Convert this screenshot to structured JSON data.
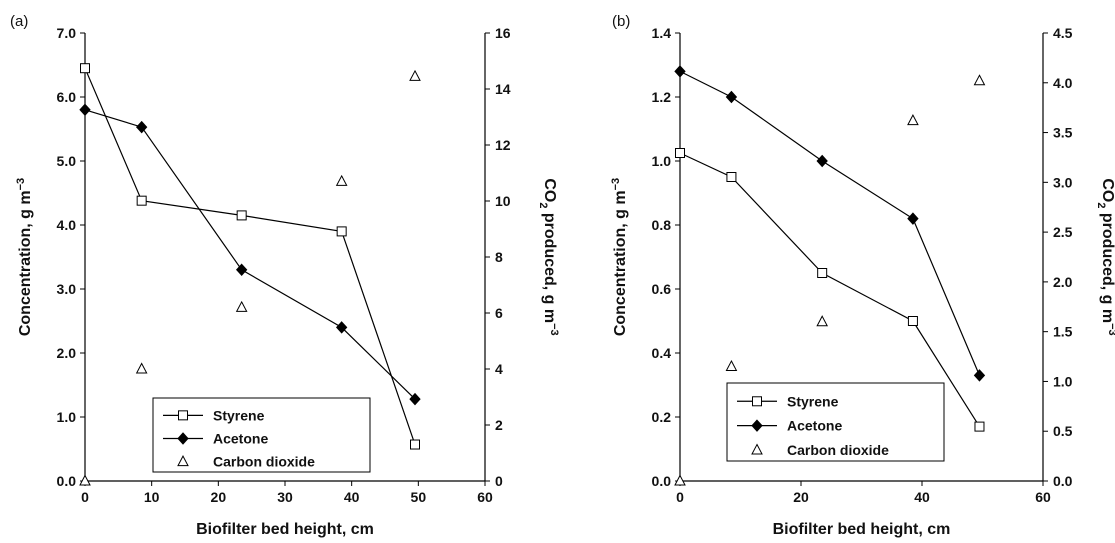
{
  "chart_data": [
    {
      "panel_label": "(a)",
      "type": "line",
      "xlabel": "Biofilter bed height, cm",
      "ylabel": "Concentration, g m",
      "ylabel_sup": "−3",
      "y2label_main": "CO",
      "y2label_sub": "2",
      "y2label_rest": " produced, g m",
      "y2label_sup": "−3",
      "xlim": [
        0,
        60
      ],
      "xticks": [
        "0",
        "10",
        "20",
        "30",
        "40",
        "50",
        "60"
      ],
      "ylim": [
        0,
        7
      ],
      "yticks": [
        "0.0",
        "1.0",
        "2.0",
        "3.0",
        "4.0",
        "5.0",
        "6.0",
        "7.0"
      ],
      "y2lim": [
        0,
        16
      ],
      "y2ticks": [
        "0",
        "2",
        "4",
        "6",
        "8",
        "10",
        "12",
        "14",
        "16"
      ],
      "series": [
        {
          "name": "Styrene",
          "marker": "open-square",
          "axis": "left",
          "x": [
            0,
            8.5,
            23.5,
            38.5,
            49.5
          ],
          "y": [
            6.45,
            4.38,
            4.15,
            3.9,
            0.57
          ]
        },
        {
          "name": "Acetone",
          "marker": "filled-diamond",
          "axis": "left",
          "x": [
            0,
            8.5,
            23.5,
            38.5,
            49.5
          ],
          "y": [
            5.8,
            5.53,
            3.3,
            2.4,
            1.28
          ]
        },
        {
          "name": "Carbon dioxide",
          "marker": "open-triangle",
          "axis": "right",
          "line": false,
          "x": [
            0,
            8.5,
            23.5,
            38.5,
            49.5
          ],
          "y": [
            0,
            4.0,
            6.2,
            10.7,
            14.45
          ]
        }
      ],
      "legend_position": "bottom-center"
    },
    {
      "panel_label": "(b)",
      "type": "line",
      "xlabel": "Biofilter bed height, cm",
      "ylabel": "Concentration, g m",
      "ylabel_sup": "−3",
      "y2label_main": "CO",
      "y2label_sub": "2",
      "y2label_rest": " produced, g m",
      "y2label_sup": "−3",
      "xlim": [
        0,
        60
      ],
      "xticks": [
        "0",
        "20",
        "40",
        "60"
      ],
      "ylim": [
        0,
        1.4
      ],
      "yticks": [
        "0.0",
        "0.2",
        "0.4",
        "0.6",
        "0.8",
        "1.0",
        "1.2",
        "1.4"
      ],
      "y2lim": [
        0,
        4.5
      ],
      "y2ticks": [
        "0.0",
        "0.5",
        "1.0",
        "1.5",
        "2.0",
        "2.5",
        "3.0",
        "3.5",
        "4.0",
        "4.5"
      ],
      "series": [
        {
          "name": "Styrene",
          "marker": "open-square",
          "axis": "left",
          "x": [
            0,
            8.5,
            23.5,
            38.5,
            49.5
          ],
          "y": [
            1.025,
            0.95,
            0.65,
            0.5,
            0.17
          ]
        },
        {
          "name": "Acetone",
          "marker": "filled-diamond",
          "axis": "left",
          "x": [
            0,
            8.5,
            23.5,
            38.5,
            49.5
          ],
          "y": [
            1.28,
            1.2,
            1.0,
            0.82,
            0.33
          ]
        },
        {
          "name": "Carbon dioxide",
          "marker": "open-triangle",
          "axis": "right",
          "line": false,
          "x": [
            0,
            8.5,
            23.5,
            38.5,
            49.5
          ],
          "y": [
            0,
            1.15,
            1.6,
            3.62,
            4.02
          ]
        }
      ],
      "legend_position": "bottom-right"
    }
  ]
}
